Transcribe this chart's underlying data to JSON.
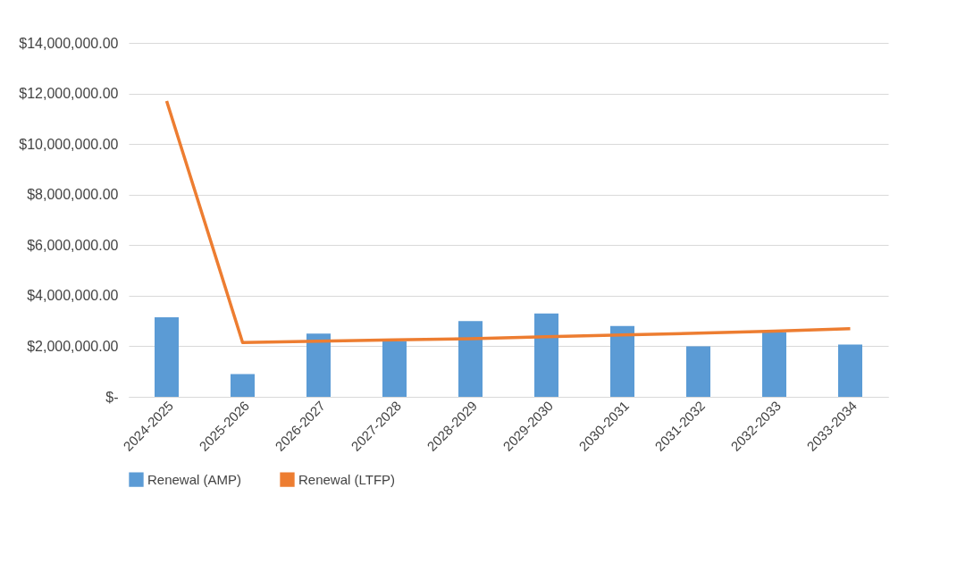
{
  "chart_data": {
    "type": "bar",
    "categories": [
      "2024-2025",
      "2025-2026",
      "2026-2027",
      "2027-2028",
      "2028-2029",
      "2029-2030",
      "2030-2031",
      "2031-2032",
      "2032-2033",
      "2033-2034"
    ],
    "series": [
      {
        "name": "Renewal (AMP)",
        "color": "#5b9bd5",
        "values": [
          3150000,
          900000,
          2500000,
          2200000,
          3000000,
          3300000,
          2800000,
          2000000,
          2550000,
          2070000
        ]
      },
      {
        "name": "Renewal (LTFP)",
        "type": "line",
        "color": "#ed7d31",
        "values": [
          11700000,
          2150000,
          2200000,
          2250000,
          2300000,
          2380000,
          2450000,
          2520000,
          2600000,
          2700000
        ]
      }
    ],
    "ylim": [
      0,
      14000000
    ],
    "yticks": [
      {
        "value": 0,
        "label": "$-"
      },
      {
        "value": 2000000,
        "label": "$2,000,000.00"
      },
      {
        "value": 4000000,
        "label": "$4,000,000.00"
      },
      {
        "value": 6000000,
        "label": "$6,000,000.00"
      },
      {
        "value": 8000000,
        "label": "$8,000,000.00"
      },
      {
        "value": 10000000,
        "label": "$10,000,000.00"
      },
      {
        "value": 12000000,
        "label": "$12,000,000.00"
      },
      {
        "value": 14000000,
        "label": "$14,000,000.00"
      }
    ],
    "grid": "y",
    "legend": "bottom",
    "marker": "none"
  }
}
